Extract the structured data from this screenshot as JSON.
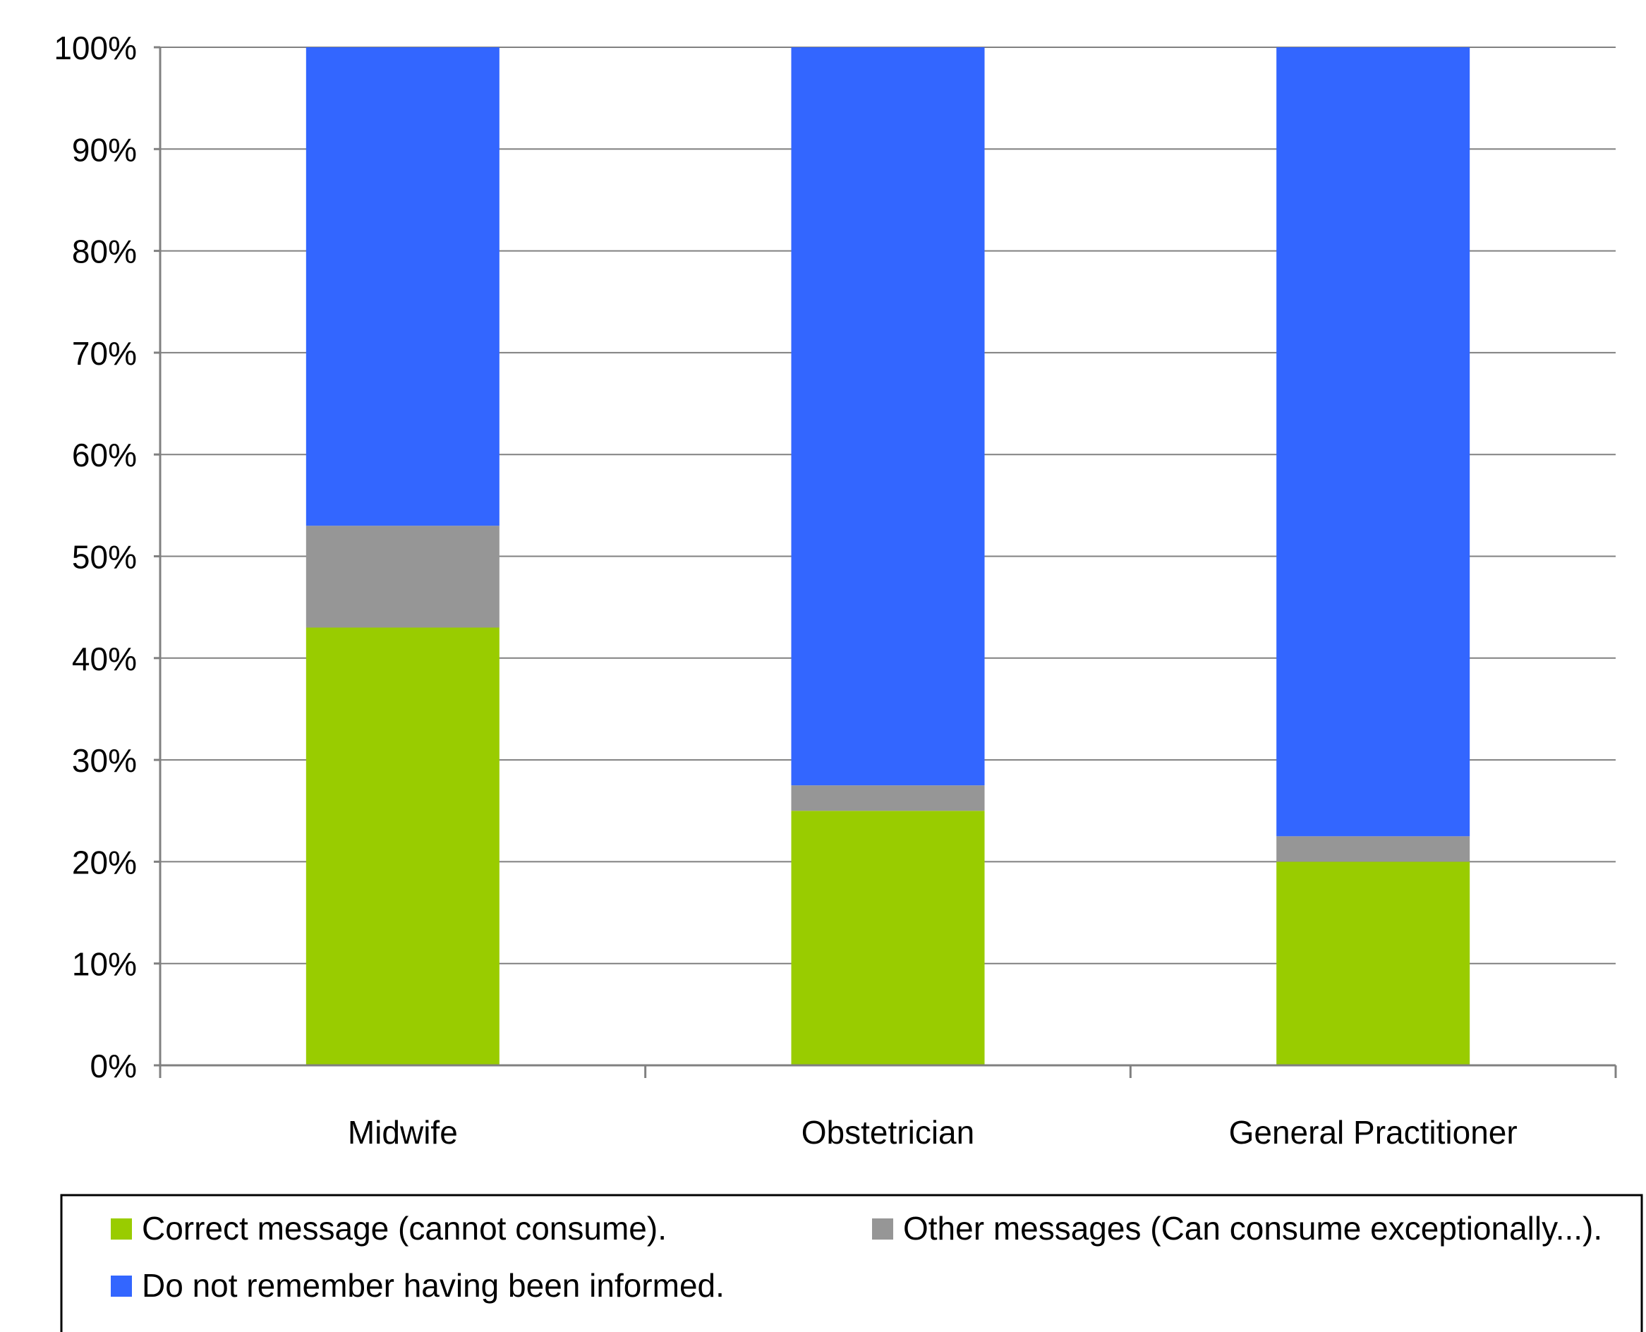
{
  "chart_data": {
    "type": "bar",
    "stacked": true,
    "percent_stacked": true,
    "categories": [
      "Midwife",
      "Obstetrician",
      "General Practitioner"
    ],
    "series": [
      {
        "name": "Correct message (cannot consume).",
        "color": "#99cc00",
        "values": [
          43,
          25,
          20
        ]
      },
      {
        "name": "Other messages (Can consume exceptionally...).",
        "color": "#969696",
        "values": [
          10,
          2.5,
          2.5
        ]
      },
      {
        "name": "Do not remember having been informed.",
        "color": "#3366ff",
        "values": [
          47,
          72.5,
          77.5
        ]
      }
    ],
    "y_ticks": [
      "0%",
      "10%",
      "20%",
      "30%",
      "40%",
      "50%",
      "60%",
      "70%",
      "80%",
      "90%",
      "100%"
    ],
    "ylim": [
      0,
      100
    ],
    "grid": true,
    "legend_position": "bottom"
  }
}
